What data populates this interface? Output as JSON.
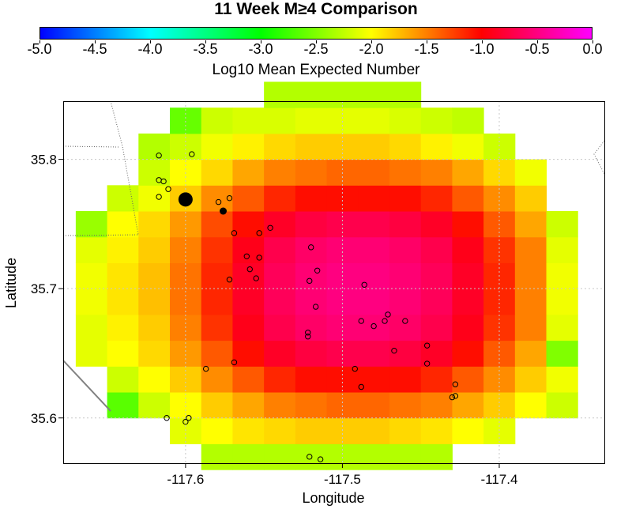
{
  "chart_data": {
    "type": "heatmap",
    "title": "11 Week M≥4 Comparison",
    "colorbar": {
      "label": "Log10 Mean Expected Number",
      "range": [
        -5.0,
        0.0
      ],
      "ticks": [
        "-5.0",
        "-4.5",
        "-4.0",
        "-3.5",
        "-3.0",
        "-2.5",
        "-2.0",
        "-1.5",
        "-1.0",
        "-0.5",
        "0.0"
      ],
      "colors": [
        "#0000ff",
        "#00ffff",
        "#00ff00",
        "#ffff00",
        "#ff0000",
        "#ff00ff"
      ]
    },
    "xlabel": "Longitude",
    "ylabel": "Latitude",
    "xlim": [
      -117.678,
      -117.333
    ],
    "ylim": [
      35.565,
      35.845
    ],
    "xticks": [
      -117.6,
      -117.5,
      -117.4
    ],
    "xtick_labels": [
      "-117.6",
      "-117.5",
      "-117.4"
    ],
    "yticks": [
      35.6,
      35.7,
      35.8
    ],
    "ytick_labels": [
      "35.6",
      "35.7",
      "35.8"
    ],
    "grid": true,
    "grid_origin": {
      "lon": -117.66,
      "lat": 35.57
    },
    "cell_size": {
      "lon": 0.02,
      "lat": 0.02
    },
    "cell_note": "rows listed from south (lat 35.57) to north; null = no value",
    "cells": [
      [
        null,
        null,
        null,
        null,
        -2.3,
        -2.3,
        -2.3,
        -2.3,
        -2.3,
        -2.3,
        -2.3,
        -2.3,
        null,
        null,
        null,
        null
      ],
      [
        null,
        null,
        null,
        -2.1,
        -2.0,
        -1.9,
        -1.85,
        -1.8,
        -1.8,
        -1.8,
        -1.85,
        -1.9,
        -2.0,
        -2.1,
        null,
        null
      ],
      [
        null,
        -2.65,
        -2.2,
        -2.0,
        -1.8,
        -1.65,
        -1.5,
        -1.45,
        -1.4,
        -1.4,
        -1.45,
        -1.5,
        -1.65,
        -1.8,
        -2.0,
        -2.2
      ],
      [
        null,
        -2.2,
        -2.0,
        -1.8,
        -1.55,
        -1.35,
        -1.15,
        -1.05,
        -1.05,
        -1.05,
        -1.05,
        -1.15,
        -1.35,
        -1.55,
        -1.8,
        -2.05
      ],
      [
        -2.1,
        -2.0,
        -1.85,
        -1.6,
        -1.35,
        -1.05,
        -0.85,
        -0.75,
        -0.7,
        -0.7,
        -0.75,
        -0.85,
        -1.05,
        -1.35,
        -1.65,
        -2.5
      ],
      [
        -2.1,
        -1.95,
        -1.8,
        -1.5,
        -1.2,
        -0.9,
        -0.7,
        -0.6,
        -0.55,
        -0.55,
        -0.6,
        -0.7,
        -0.9,
        -1.2,
        -1.5,
        -2.1
      ],
      [
        -2.05,
        -1.9,
        -1.75,
        -1.45,
        -1.15,
        -0.85,
        -0.65,
        -0.55,
        -0.5,
        -0.5,
        -0.55,
        -0.65,
        -0.85,
        -1.15,
        -1.5,
        -2.05
      ],
      [
        -2.05,
        -1.9,
        -1.75,
        -1.45,
        -1.15,
        -0.85,
        -0.65,
        -0.55,
        -0.5,
        -0.5,
        -0.55,
        -0.65,
        -0.85,
        -1.15,
        -1.5,
        -2.05
      ],
      [
        -2.1,
        -1.95,
        -1.8,
        -1.5,
        -1.2,
        -0.9,
        -0.7,
        -0.6,
        -0.55,
        -0.55,
        -0.6,
        -0.7,
        -0.9,
        -1.2,
        -1.5,
        -2.1
      ],
      [
        -2.4,
        -2.0,
        -1.85,
        -1.6,
        -1.3,
        -1.05,
        -0.85,
        -0.75,
        -0.7,
        -0.7,
        -0.75,
        -0.85,
        -1.05,
        -1.35,
        -1.65,
        -2.2
      ],
      [
        null,
        -2.2,
        -2.05,
        -1.8,
        -1.55,
        -1.35,
        -1.15,
        -1.05,
        -1.05,
        -1.05,
        -1.05,
        -1.15,
        -1.35,
        -1.55,
        -1.8,
        null
      ],
      [
        null,
        null,
        -2.2,
        -2.0,
        -1.85,
        -1.65,
        -1.5,
        -1.45,
        -1.4,
        -1.4,
        -1.45,
        -1.5,
        -1.65,
        -1.85,
        -2.05,
        null
      ],
      [
        null,
        null,
        -2.3,
        -2.2,
        -2.05,
        -1.95,
        -1.85,
        -1.8,
        -1.8,
        -1.8,
        -1.85,
        -1.95,
        -2.05,
        -2.2,
        null,
        null
      ],
      [
        null,
        null,
        null,
        -2.6,
        -2.2,
        -2.15,
        -2.15,
        -2.1,
        -2.1,
        -2.1,
        -2.15,
        -2.2,
        -2.25,
        null,
        null,
        null
      ],
      [
        null,
        null,
        null,
        null,
        null,
        null,
        -2.3,
        -2.3,
        -2.3,
        -2.3,
        -2.3,
        null,
        null,
        null,
        null,
        null
      ]
    ],
    "events_small": [
      [
        -117.617,
        35.803
      ],
      [
        -117.596,
        35.804
      ],
      [
        -117.617,
        35.784
      ],
      [
        -117.614,
        35.783
      ],
      [
        -117.611,
        35.777
      ],
      [
        -117.617,
        35.771
      ],
      [
        -117.579,
        35.767
      ],
      [
        -117.572,
        35.77
      ],
      [
        -117.569,
        35.743
      ],
      [
        -117.553,
        35.743
      ],
      [
        -117.546,
        35.747
      ],
      [
        -117.561,
        35.725
      ],
      [
        -117.553,
        35.724
      ],
      [
        -117.559,
        35.715
      ],
      [
        -117.572,
        35.707
      ],
      [
        -117.555,
        35.708
      ],
      [
        -117.52,
        35.732
      ],
      [
        -117.516,
        35.714
      ],
      [
        -117.521,
        35.706
      ],
      [
        -117.517,
        35.686
      ],
      [
        -117.486,
        35.703
      ],
      [
        -117.488,
        35.675
      ],
      [
        -117.48,
        35.671
      ],
      [
        -117.473,
        35.675
      ],
      [
        -117.471,
        35.68
      ],
      [
        -117.46,
        35.675
      ],
      [
        -117.467,
        35.652
      ],
      [
        -117.446,
        35.656
      ],
      [
        -117.446,
        35.642
      ],
      [
        -117.522,
        35.666
      ],
      [
        -117.522,
        35.663
      ],
      [
        -117.492,
        35.638
      ],
      [
        -117.488,
        35.624
      ],
      [
        -117.587,
        35.638
      ],
      [
        -117.569,
        35.643
      ],
      [
        -117.612,
        35.6
      ],
      [
        -117.6,
        35.597
      ],
      [
        -117.598,
        35.6
      ],
      [
        -117.428,
        35.626
      ],
      [
        -117.428,
        35.617
      ],
      [
        -117.43,
        35.616
      ],
      [
        -117.521,
        35.57
      ],
      [
        -117.514,
        35.568
      ]
    ],
    "events_large": [
      {
        "lon": -117.6,
        "lat": 35.769,
        "size": "large"
      },
      {
        "lon": -117.576,
        "lat": 35.76,
        "size": "medium"
      }
    ]
  }
}
